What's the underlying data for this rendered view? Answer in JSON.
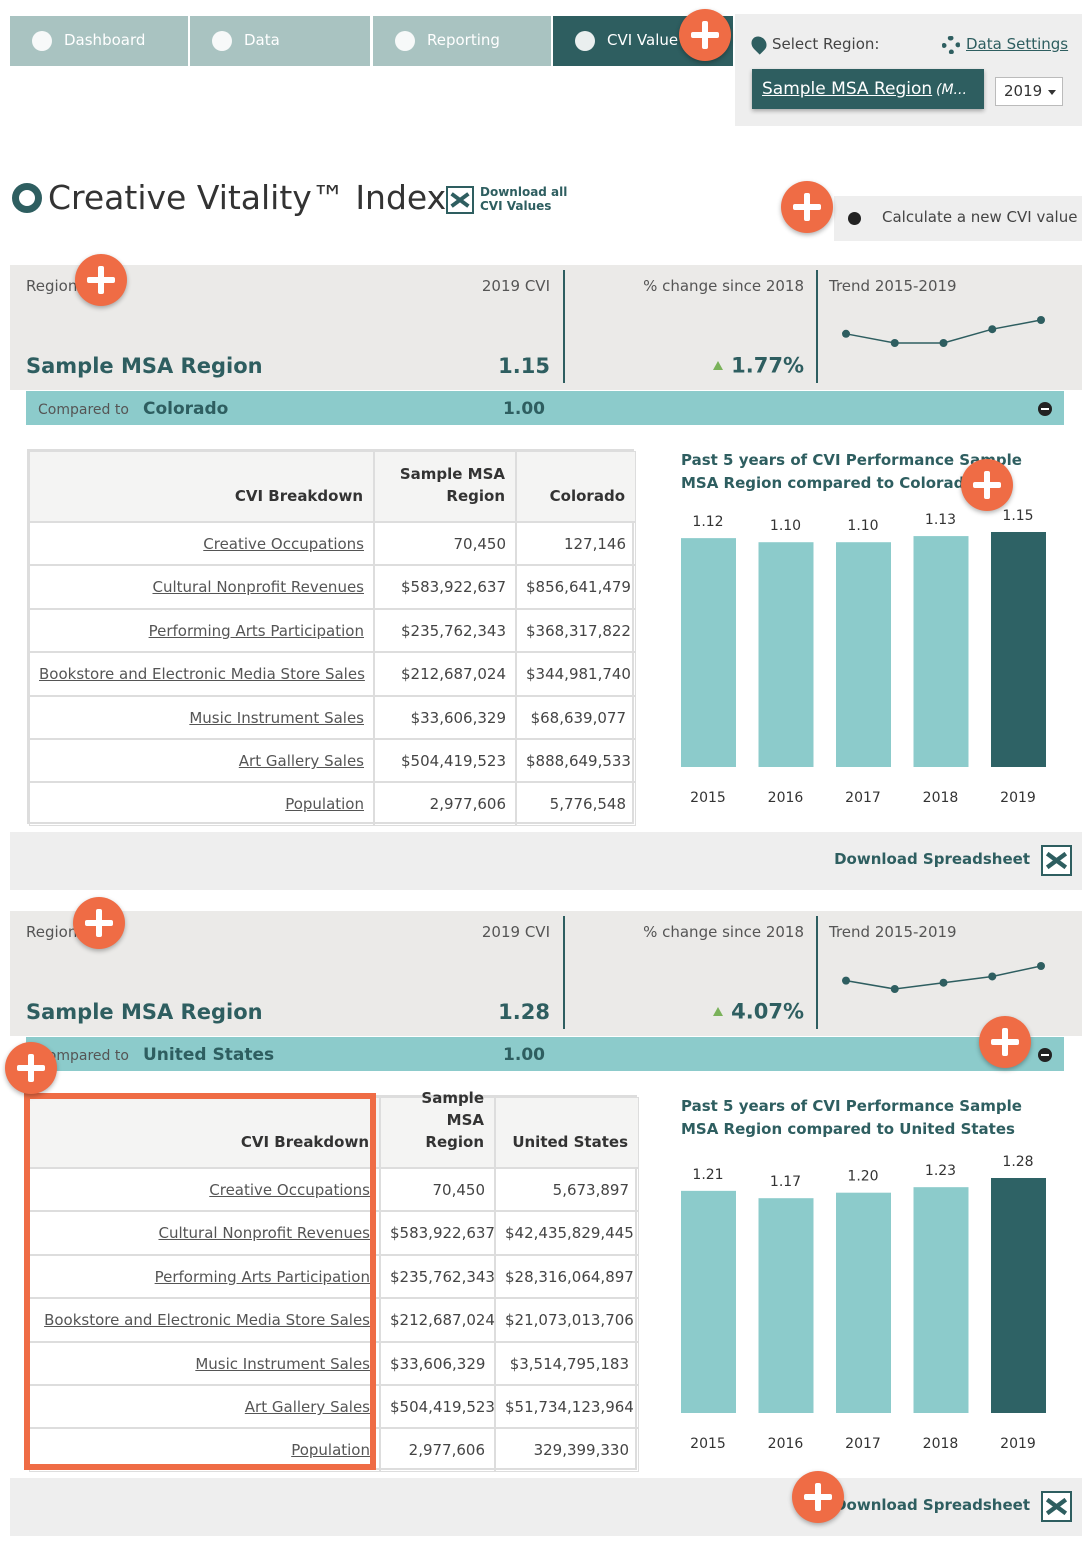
{
  "nav": {
    "tabs": [
      "Dashboard",
      "Data",
      "Reporting",
      "CVI Value"
    ],
    "select_region": "Select Region:",
    "data_settings": "Data Settings",
    "region": "Sample MSA Region",
    "region_suffix": "(M...",
    "year": "2019"
  },
  "header": {
    "title": "Creative Vitality™ Index",
    "download_all": "Download all CVI Values",
    "calculate": "Calculate a new CVI value"
  },
  "panels": [
    {
      "region_label": "Region",
      "cvi_label": "2019 CVI",
      "change_label": "% change since 2018",
      "trend_label": "Trend 2015-2019",
      "region": "Sample MSA Region",
      "cvi": "1.15",
      "change": "1.77%",
      "compared_label": "Compared to",
      "compared": "Colorado",
      "compared_cvi": "1.00",
      "table": {
        "headers": [
          "CVI Breakdown",
          "Sample MSA Region",
          "Colorado"
        ],
        "rows": [
          [
            "Creative Occupations",
            "70,450",
            "127,146"
          ],
          [
            "Cultural Nonprofit Revenues",
            "$583,922,637",
            "$856,641,479"
          ],
          [
            "Performing Arts Participation",
            "$235,762,343",
            "$368,317,822"
          ],
          [
            "Bookstore and Electronic Media Store Sales",
            "$212,687,024",
            "$344,981,740"
          ],
          [
            "Music Instrument Sales",
            "$33,606,329",
            "$68,639,077"
          ],
          [
            "Art Gallery Sales",
            "$504,419,523",
            "$888,649,533"
          ],
          [
            "Population",
            "2,977,606",
            "5,776,548"
          ]
        ]
      },
      "chart": {
        "type": "bar",
        "title": "Past 5 years of CVI Performance Sample MSA Region compared to Colorado",
        "categories": [
          "2015",
          "2016",
          "2017",
          "2018",
          "2019"
        ],
        "values": [
          1.12,
          1.1,
          1.1,
          1.13,
          1.15
        ],
        "value_labels": [
          "1.12",
          "1.10",
          "1.10",
          "1.13",
          "1.15"
        ],
        "colors": [
          "#8ccbcb",
          "#8ccbcb",
          "#8ccbcb",
          "#8ccbcb",
          "#2e6265"
        ],
        "ylim": [
          0,
          1.15
        ]
      },
      "download": "Download Spreadsheet"
    },
    {
      "region_label": "Region",
      "cvi_label": "2019 CVI",
      "change_label": "% change since 2018",
      "trend_label": "Trend 2015-2019",
      "region": "Sample MSA Region",
      "cvi": "1.28",
      "change": "4.07%",
      "compared_label": "Compared to",
      "compared": "United States",
      "compared_cvi": "1.00",
      "table": {
        "headers": [
          "CVI Breakdown",
          "Sample MSA Region",
          "United States"
        ],
        "rows": [
          [
            "Creative Occupations",
            "70,450",
            "5,673,897"
          ],
          [
            "Cultural Nonprofit Revenues",
            "$583,922,637",
            "$42,435,829,445"
          ],
          [
            "Performing Arts Participation",
            "$235,762,343",
            "$28,316,064,897"
          ],
          [
            "Bookstore and Electronic Media Store Sales",
            "$212,687,024",
            "$21,073,013,706"
          ],
          [
            "Music Instrument Sales",
            "$33,606,329",
            "$3,514,795,183"
          ],
          [
            "Art Gallery Sales",
            "$504,419,523",
            "$51,734,123,964"
          ],
          [
            "Population",
            "2,977,606",
            "329,399,330"
          ]
        ]
      },
      "chart": {
        "type": "bar",
        "title": "Past 5 years of CVI Performance Sample MSA Region compared to United States",
        "categories": [
          "2015",
          "2016",
          "2017",
          "2018",
          "2019"
        ],
        "values": [
          1.21,
          1.17,
          1.2,
          1.23,
          1.28
        ],
        "value_labels": [
          "1.21",
          "1.17",
          "1.20",
          "1.23",
          "1.28"
        ],
        "colors": [
          "#8ccbcb",
          "#8ccbcb",
          "#8ccbcb",
          "#8ccbcb",
          "#2e6265"
        ],
        "ylim": [
          0,
          1.28
        ]
      },
      "download": "Download Spreadsheet"
    }
  ]
}
